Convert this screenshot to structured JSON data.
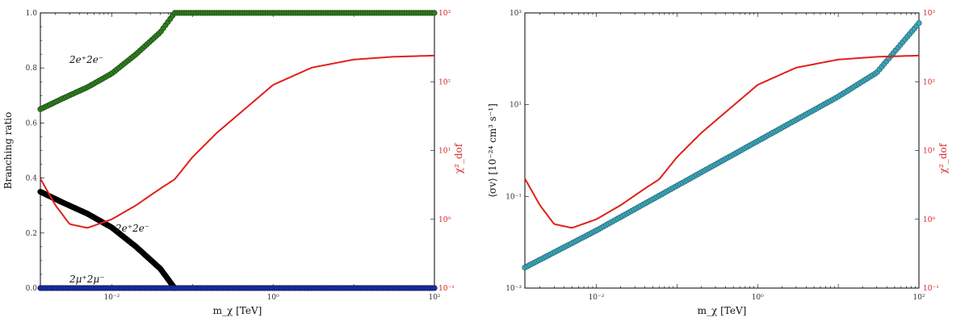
{
  "chart_data": [
    {
      "type": "scatter",
      "xlabel": "m_χ [TeV]",
      "ylabel": "Branching ratio",
      "y2label": "χ²_dof",
      "x_scale": "log",
      "xlim": [
        0.0013,
        100
      ],
      "ylim": [
        0,
        1.0
      ],
      "y2_scale": "log",
      "y2lim": [
        0.1,
        1000
      ],
      "x_tick_labels": [
        "10⁻²",
        "10⁰",
        "10²"
      ],
      "x_ticks": [
        0.01,
        1,
        100
      ],
      "y_ticks": [
        0.0,
        0.2,
        0.4,
        0.6,
        0.8,
        1.0
      ],
      "y_tick_labels": [
        "0.0",
        "0.2",
        "0.4",
        "0.6",
        "0.8",
        "1.0"
      ],
      "y2_ticks": [
        0.1,
        1,
        10,
        100,
        1000
      ],
      "y2_tick_labels": [
        "10⁻¹",
        "10⁰",
        "10¹",
        "10²",
        "10³"
      ],
      "grid": false,
      "series": [
        {
          "name": "2e⁺2e⁻",
          "color": "#2e7d1e",
          "style": "points",
          "x": [
            0.0013,
            0.0025,
            0.005,
            0.01,
            0.02,
            0.04,
            0.06,
            0.1,
            1,
            10,
            100
          ],
          "y": [
            0.65,
            0.69,
            0.73,
            0.78,
            0.85,
            0.93,
            1.0,
            1.0,
            1.0,
            1.0,
            1.0
          ]
        },
        {
          "name": "2e⁺2e⁻",
          "color": "#000000",
          "style": "points",
          "x": [
            0.0013,
            0.0025,
            0.005,
            0.01,
            0.02,
            0.04,
            0.06
          ],
          "y": [
            0.35,
            0.31,
            0.27,
            0.22,
            0.15,
            0.07,
            0.0
          ]
        },
        {
          "name": "2μ⁺2μ⁻",
          "color": "#1a2fa0",
          "style": "points",
          "x": [
            0.0013,
            0.01,
            0.1,
            1,
            10,
            100
          ],
          "y": [
            0.0,
            0.0,
            0.0,
            0.0,
            0.0,
            0.0
          ]
        },
        {
          "name": "χ²_dof",
          "color": "#e0201a",
          "style": "line",
          "axis": "y2",
          "x": [
            0.0013,
            0.002,
            0.003,
            0.005,
            0.01,
            0.02,
            0.04,
            0.06,
            0.1,
            0.2,
            0.5,
            1,
            3,
            10,
            30,
            100
          ],
          "y": [
            3.9,
            1.6,
            0.85,
            0.75,
            1.0,
            1.6,
            2.8,
            3.8,
            8.0,
            18,
            45,
            90,
            160,
            210,
            230,
            240
          ]
        }
      ],
      "annotations": [
        "2e⁺2e⁻",
        "2e⁺2e⁻",
        "2μ⁺2μ⁻"
      ]
    },
    {
      "type": "scatter",
      "xlabel": "m_χ [TeV]",
      "ylabel": "⟨σv⟩ [10⁻²⁴ cm³ s⁻¹]",
      "y2label": "χ²_dof",
      "x_scale": "log",
      "xlim": [
        0.0013,
        100
      ],
      "y_scale": "log",
      "ylim": [
        0.001,
        1000
      ],
      "y2_scale": "log",
      "y2lim": [
        0.1,
        1000
      ],
      "x_tick_labels": [
        "10⁻²",
        "10⁰",
        "10²"
      ],
      "x_ticks": [
        0.01,
        1,
        100
      ],
      "y_ticks": [
        0.001,
        0.1,
        10,
        1000
      ],
      "y_tick_labels": [
        "10⁻³",
        "10⁻¹",
        "10¹",
        "10³"
      ],
      "y2_ticks": [
        0.1,
        1,
        10,
        100,
        1000
      ],
      "y2_tick_labels": [
        "10⁻¹",
        "10⁰",
        "10¹",
        "10²",
        "10³"
      ],
      "grid": false,
      "series": [
        {
          "name": "⟨σv⟩",
          "color": "#3aa6b8",
          "style": "points",
          "x": [
            0.0013,
            0.01,
            0.1,
            1,
            10,
            30,
            100
          ],
          "y": [
            0.0028,
            0.018,
            0.17,
            1.6,
            15,
            50,
            600
          ]
        },
        {
          "name": "χ²_dof",
          "color": "#e0201a",
          "style": "line",
          "axis": "y2",
          "x": [
            0.0013,
            0.002,
            0.003,
            0.005,
            0.01,
            0.02,
            0.04,
            0.06,
            0.1,
            0.2,
            0.5,
            1,
            3,
            10,
            30,
            100
          ],
          "y": [
            3.9,
            1.6,
            0.85,
            0.75,
            1.0,
            1.6,
            2.8,
            3.8,
            8.0,
            18,
            45,
            90,
            160,
            210,
            230,
            240
          ]
        }
      ]
    }
  ]
}
